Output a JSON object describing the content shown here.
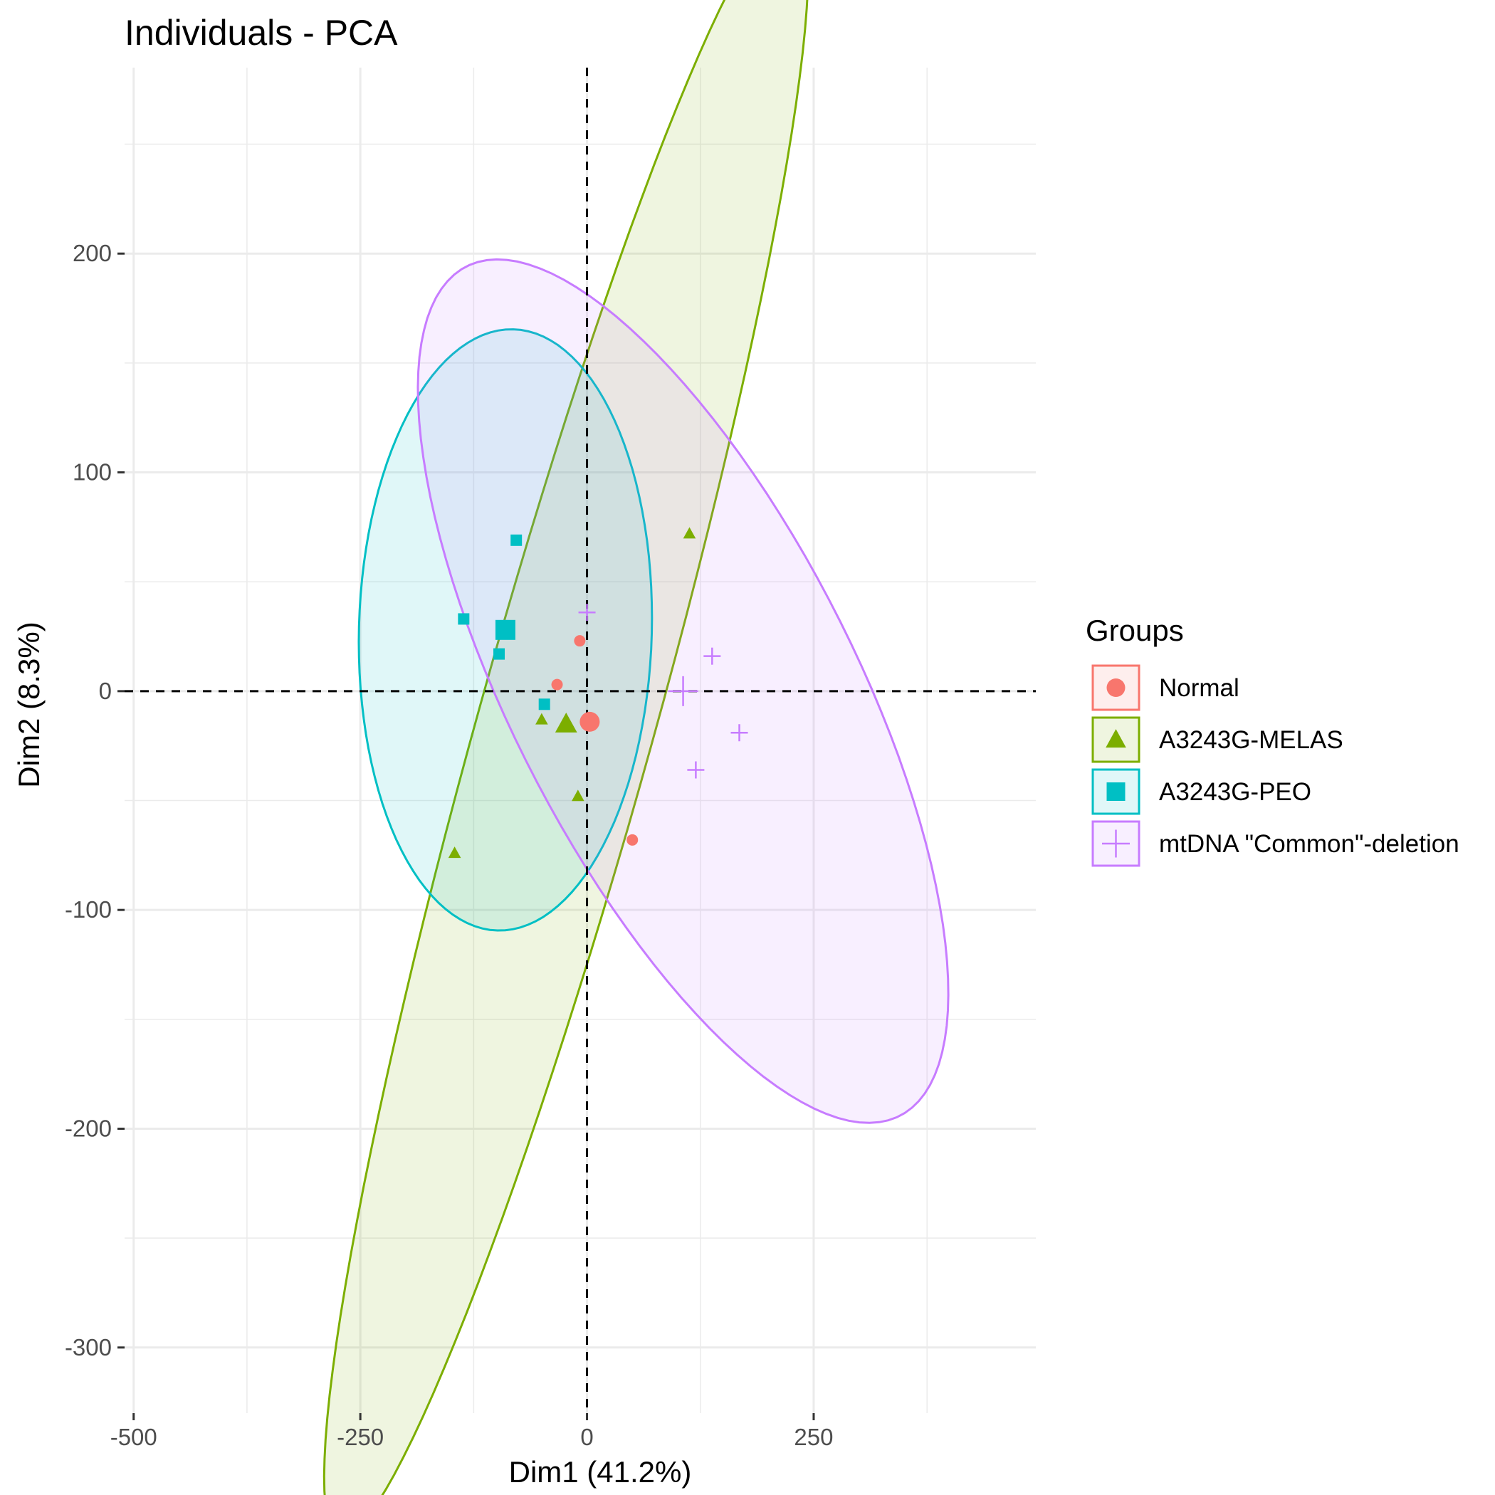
{
  "chart_data": {
    "type": "scatter",
    "title": "Individuals - PCA",
    "xlabel": "Dim1 (41.2%)",
    "ylabel": "Dim2 (8.3%)",
    "xlim": [
      -510,
      495
    ],
    "ylim": [
      -330,
      285
    ],
    "x_ticks": [
      -500,
      -250,
      0,
      250
    ],
    "x_tick_labels": [
      "-500",
      "-250",
      "0",
      "250"
    ],
    "y_ticks": [
      -300,
      -200,
      -100,
      0,
      100,
      200
    ],
    "y_tick_labels": [
      "-300",
      "-200",
      "-100",
      "0",
      "100",
      "200"
    ],
    "grid": true,
    "reference_lines": {
      "x": 0,
      "y": 0,
      "style": "dashed"
    },
    "legend": {
      "title": "Groups",
      "position": "right"
    },
    "series": [
      {
        "name": "Normal",
        "color": "#F8766D",
        "shape": "circle",
        "points": [
          [
            -8,
            23
          ],
          [
            -33,
            3
          ],
          [
            50,
            -68
          ]
        ],
        "centroid": [
          3,
          -14
        ],
        "ellipse": null
      },
      {
        "name": "A3243G-MELAS",
        "color": "#7CAE00",
        "shape": "triangle",
        "points": [
          [
            113,
            72
          ],
          [
            -50,
            -13
          ],
          [
            -10,
            -48
          ],
          [
            -146,
            -74
          ]
        ],
        "centroid": [
          -23,
          -15
        ],
        "ellipse": {
          "cx": -23,
          "cy": -15,
          "rx": 450,
          "ry": 83,
          "angle_deg": 55
        }
      },
      {
        "name": "A3243G-PEO",
        "color": "#00BFC4",
        "shape": "square",
        "points": [
          [
            -78,
            69
          ],
          [
            -136,
            33
          ],
          [
            -97,
            17
          ],
          [
            -47,
            -6
          ]
        ],
        "centroid": [
          -90,
          28
        ],
        "ellipse": {
          "cx": -90,
          "cy": 28,
          "rx": 162,
          "ry": 137,
          "angle_deg": 7
        }
      },
      {
        "name": "mtDNA \"Common\"-deletion",
        "color": "#C77CFF",
        "shape": "plus",
        "points": [
          [
            0,
            36
          ],
          [
            138,
            16
          ],
          [
            168,
            -19
          ],
          [
            120,
            -36
          ]
        ],
        "centroid": [
          106,
          0
        ],
        "ellipse": {
          "cx": 106,
          "cy": 0,
          "rx": 330,
          "ry": 125,
          "angle_deg": -30
        }
      }
    ]
  }
}
